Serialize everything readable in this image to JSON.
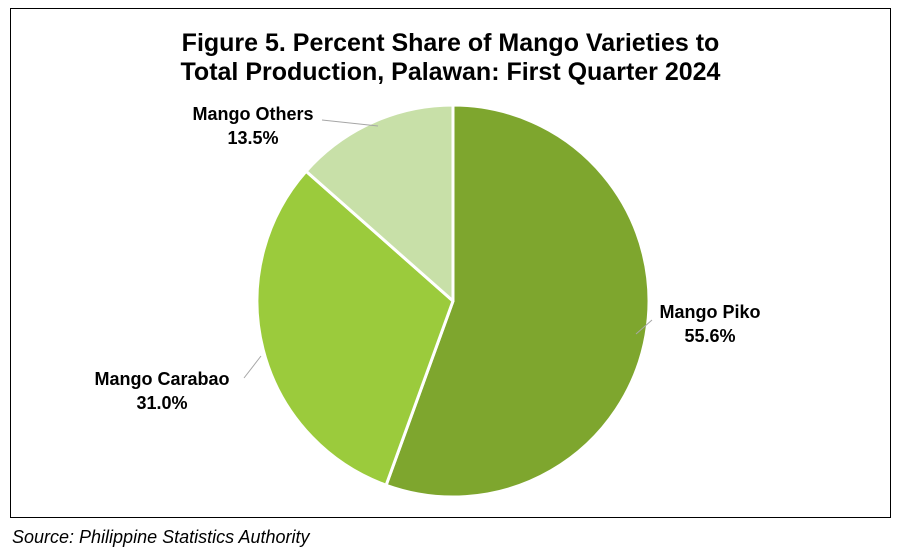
{
  "chart_data": {
    "type": "pie",
    "title_line1": "Figure 5. Percent Share of Mango Varieties to",
    "title_line2": "Total Production, Palawan: First Quarter 2024",
    "slices": [
      {
        "label": "Mango Piko",
        "value_label": "55.6%",
        "value": 55.6,
        "color": "#7ea62e"
      },
      {
        "label": "Mango Carabao",
        "value_label": "31.0%",
        "value": 31.0,
        "color": "#9bcb3c"
      },
      {
        "label": "Mango Others",
        "value_label": "13.5%",
        "value": 13.5,
        "color": "#c8e0a8"
      }
    ],
    "start": "12 o'clock",
    "direction": "clockwise"
  },
  "source": "Source: Philippine Statistics Authority"
}
